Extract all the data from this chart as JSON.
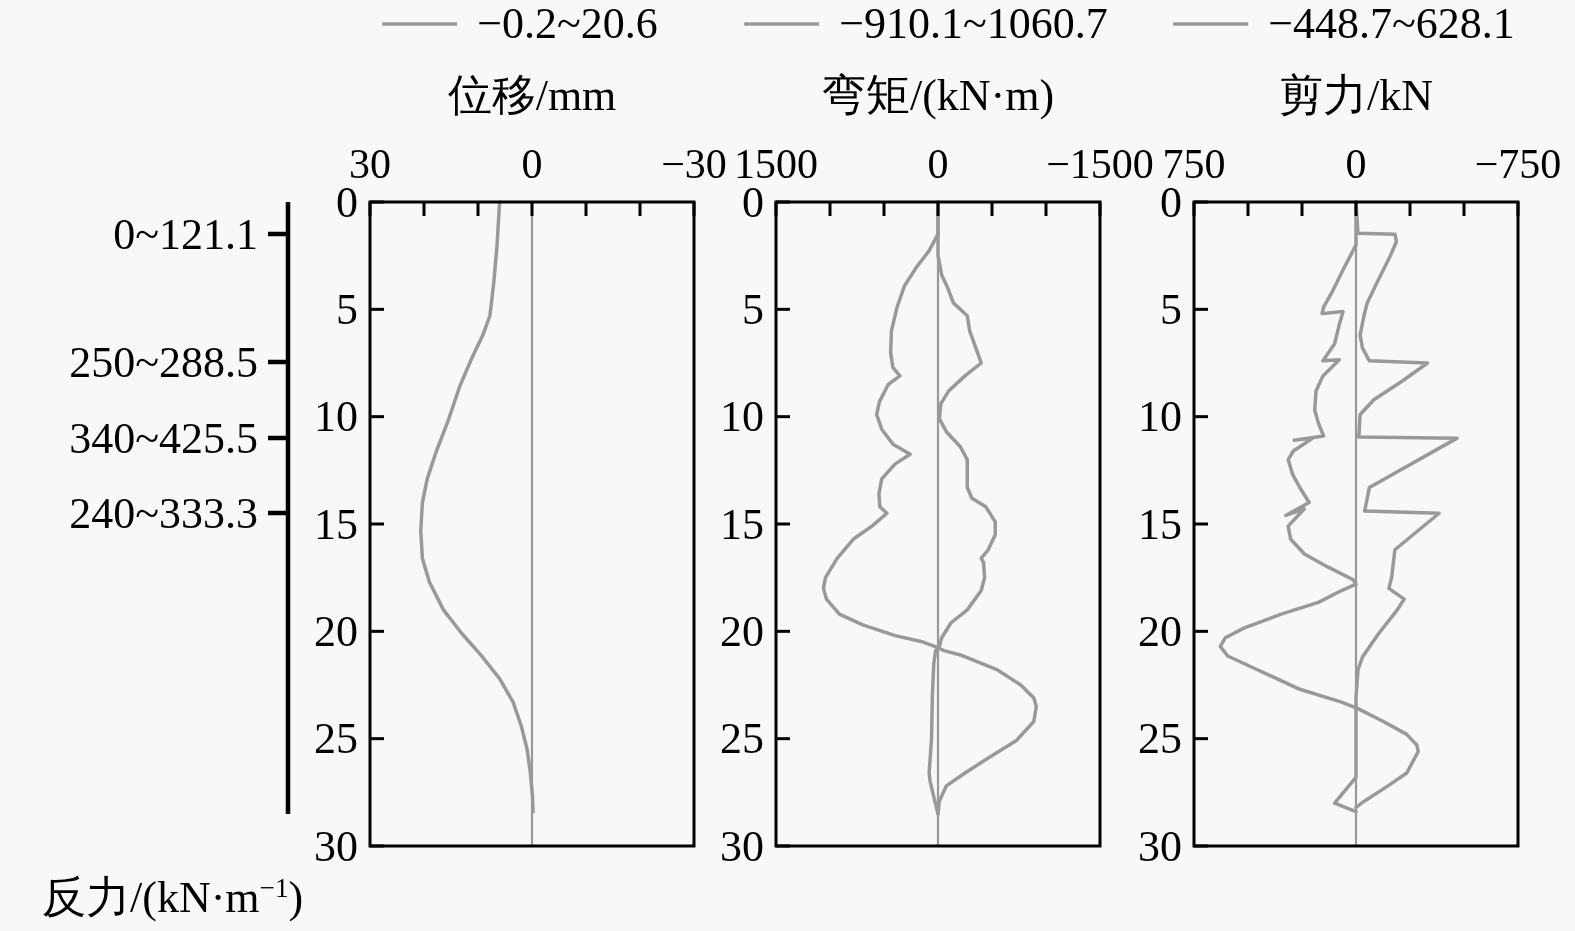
{
  "chart_data": [
    {
      "type": "line",
      "xlabel": "位移/mm",
      "xlim": [
        30,
        -30
      ],
      "xticks": [
        30,
        {
          "value": 20,
          "label": null
        },
        {
          "value": 10,
          "label": null
        },
        0,
        {
          "value": -10,
          "label": null
        },
        {
          "value": -20,
          "label": null
        },
        -30
      ],
      "ylim": [
        30,
        0
      ],
      "yticks": [
        0,
        5,
        10,
        15,
        20,
        25,
        30
      ],
      "legend": "top",
      "annotations": [
        "0~121.1",
        "250~288.5",
        "340~425.5",
        "240~333.3",
        "反力/(kN·m$^{−1}$)"
      ],
      "ref_lines": [
        {
          "axis": "x",
          "value": 0,
          "color": "#999999"
        }
      ],
      "series": [
        {
          "name": "−0.2~20.6",
          "color": "#999999",
          "x": [
            6.0,
            6.5,
            7.1,
            7.8,
            9.1,
            11.2,
            13.4,
            15.4,
            17.7,
            19.4,
            20.3,
            20.6,
            20.3,
            19.0,
            16.4,
            13.0,
            9.5,
            6.0,
            3.5,
            2.0,
            0.9,
            0.3,
            -0.1,
            -0.2
          ],
          "values": [
            0,
            2.1,
            3.8,
            5.3,
            6.2,
            7.3,
            8.6,
            10.1,
            11.6,
            12.9,
            14.0,
            15.3,
            16.6,
            17.7,
            19.0,
            20.1,
            21.1,
            22.2,
            23.3,
            24.4,
            25.5,
            26.6,
            27.7,
            28.4
          ]
        }
      ]
    },
    {
      "type": "line",
      "xlabel": "弯矩/(kN·m)",
      "xlim": [
        1500,
        -1500
      ],
      "xticks": [
        1500,
        {
          "value": 1000,
          "label": null
        },
        {
          "value": 500,
          "label": null
        },
        0,
        {
          "value": -500,
          "label": null
        },
        {
          "value": -1000,
          "label": null
        },
        -1500
      ],
      "ylim": [
        30,
        0
      ],
      "yticks": [
        0,
        5,
        10,
        15,
        20,
        25,
        30
      ],
      "legend": "top",
      "ref_lines": [
        {
          "axis": "x",
          "value": 0,
          "color": "#999999"
        }
      ],
      "series": [
        {
          "name": "−910.1~1060.7",
          "color": "#999999",
          "x": [
            0,
            0,
            86,
            194,
            310,
            379,
            431,
            439,
            418,
            353,
            461,
            542,
            568,
            520,
            413,
            258,
            396,
            521,
            547,
            538,
            473,
            611,
            783,
            934,
            1042,
            1060.7,
            1033,
            913,
            697,
            396,
            138,
            30,
            -56,
            -207,
            -551,
            -766,
            -887,
            -910.1,
            -887,
            -723,
            -465,
            -250,
            -77,
            -13,
            0
          ],
          "values": [
            0,
            1.5,
            2.3,
            3.0,
            3.9,
            4.9,
            6.0,
            7.0,
            7.7,
            8.1,
            8.5,
            9.3,
            9.9,
            10.6,
            11.3,
            11.75,
            12.2,
            12.9,
            13.6,
            14.2,
            14.5,
            15.1,
            15.7,
            16.6,
            17.5,
            18.0,
            18.5,
            19.2,
            19.7,
            20.2,
            20.5,
            20.7,
            20.9,
            21.1,
            21.8,
            22.5,
            23.1,
            23.5,
            24.2,
            25.1,
            25.9,
            26.6,
            27.2,
            27.9,
            28.5
          ]
        },
        {
          "color": "#999999",
          "x": [
            0,
            0,
            -34,
            -90,
            -142,
            -271,
            -293,
            -336,
            -400,
            -250,
            -99,
            -26,
            -13,
            -77,
            -207,
            -271,
            -271,
            -314,
            -443,
            -530,
            -530,
            -465,
            -400,
            -422,
            -431,
            -400,
            -271,
            -121,
            -34,
            -13,
            22,
            39,
            52,
            60,
            82,
            73,
            30,
            0
          ],
          "values": [
            0,
            2.5,
            3.4,
            4.0,
            4.7,
            5.3,
            6.0,
            6.6,
            7.5,
            8.1,
            8.8,
            9.4,
            10.1,
            10.7,
            11.4,
            12.0,
            13.3,
            13.8,
            14.2,
            14.9,
            15.5,
            16.2,
            16.6,
            16.8,
            17.5,
            18.1,
            19.0,
            19.6,
            20.3,
            20.7,
            20.9,
            21.5,
            23.0,
            25.0,
            26.6,
            27.0,
            27.9,
            28.5
          ]
        }
      ]
    },
    {
      "type": "line",
      "xlabel": "剪力/kN",
      "xlim": [
        750,
        -750
      ],
      "xticks": [
        750,
        {
          "value": 500,
          "label": null
        },
        {
          "value": 250,
          "label": null
        },
        0,
        {
          "value": -250,
          "label": null
        },
        {
          "value": -500,
          "label": null
        },
        -750
      ],
      "ylim": [
        30,
        0
      ],
      "yticks": [
        0,
        5,
        10,
        15,
        20,
        25,
        30
      ],
      "legend": "top",
      "ref_lines": [
        {
          "axis": "x",
          "value": 0,
          "color": "#999999"
        }
      ],
      "series": [
        {
          "name": "−448.7~628.1",
          "color": "#999999",
          "x": [
            0,
            0,
            57,
            111,
            150,
            157,
            60,
            77,
            99,
            153,
            77,
            153,
            185,
            191,
            174,
            150,
            286,
            200,
            290,
            314,
            293,
            260,
            217,
            325,
            240,
            314,
            303,
            239,
            131,
            13,
            0,
            67,
            174,
            346,
            519,
            605,
            628.1,
            594,
            454,
            260,
            67,
            -9,
            -127,
            -235,
            -282,
            -288,
            -235,
            -148,
            -40,
            0
          ],
          "values": [
            0,
            2.0,
            3.1,
            4.2,
            4.9,
            5.2,
            5.1,
            5.7,
            6.6,
            7.4,
            7.35,
            8.1,
            8.8,
            9.7,
            10.3,
            10.9,
            11.1,
            11.0,
            11.6,
            12.0,
            12.7,
            13.3,
            14.0,
            14.6,
            14.3,
            15.1,
            15.7,
            16.4,
            17.0,
            17.6,
            17.8,
            18.1,
            18.65,
            19.2,
            19.85,
            20.3,
            20.7,
            21.15,
            21.8,
            22.7,
            23.3,
            23.6,
            24.2,
            24.8,
            25.3,
            25.6,
            26.6,
            27.2,
            27.9,
            28.2
          ]
        },
        {
          "color": "#999999",
          "x": [
            0,
            -9,
            -181,
            -187,
            -159,
            -95,
            -52,
            -37,
            -19,
            -30,
            -62,
            -331,
            -213,
            -84,
            -19,
            -13,
            -468,
            -62,
            -52,
            -40,
            -385,
            -180,
            -165,
            -152,
            -223,
            -191,
            -105,
            -30,
            -9,
            0,
            0,
            99,
            0
          ],
          "values": [
            0,
            1.45,
            1.5,
            1.85,
            2.5,
            3.8,
            4.7,
            5.3,
            6.2,
            6.8,
            7.4,
            7.5,
            8.35,
            9.2,
            9.9,
            10.95,
            11.0,
            13.3,
            13.8,
            14.4,
            14.5,
            16.2,
            17.5,
            18.0,
            18.5,
            19.0,
            20.1,
            21.2,
            21.8,
            23.1,
            26.8,
            28.0,
            28.4
          ]
        }
      ]
    }
  ]
}
